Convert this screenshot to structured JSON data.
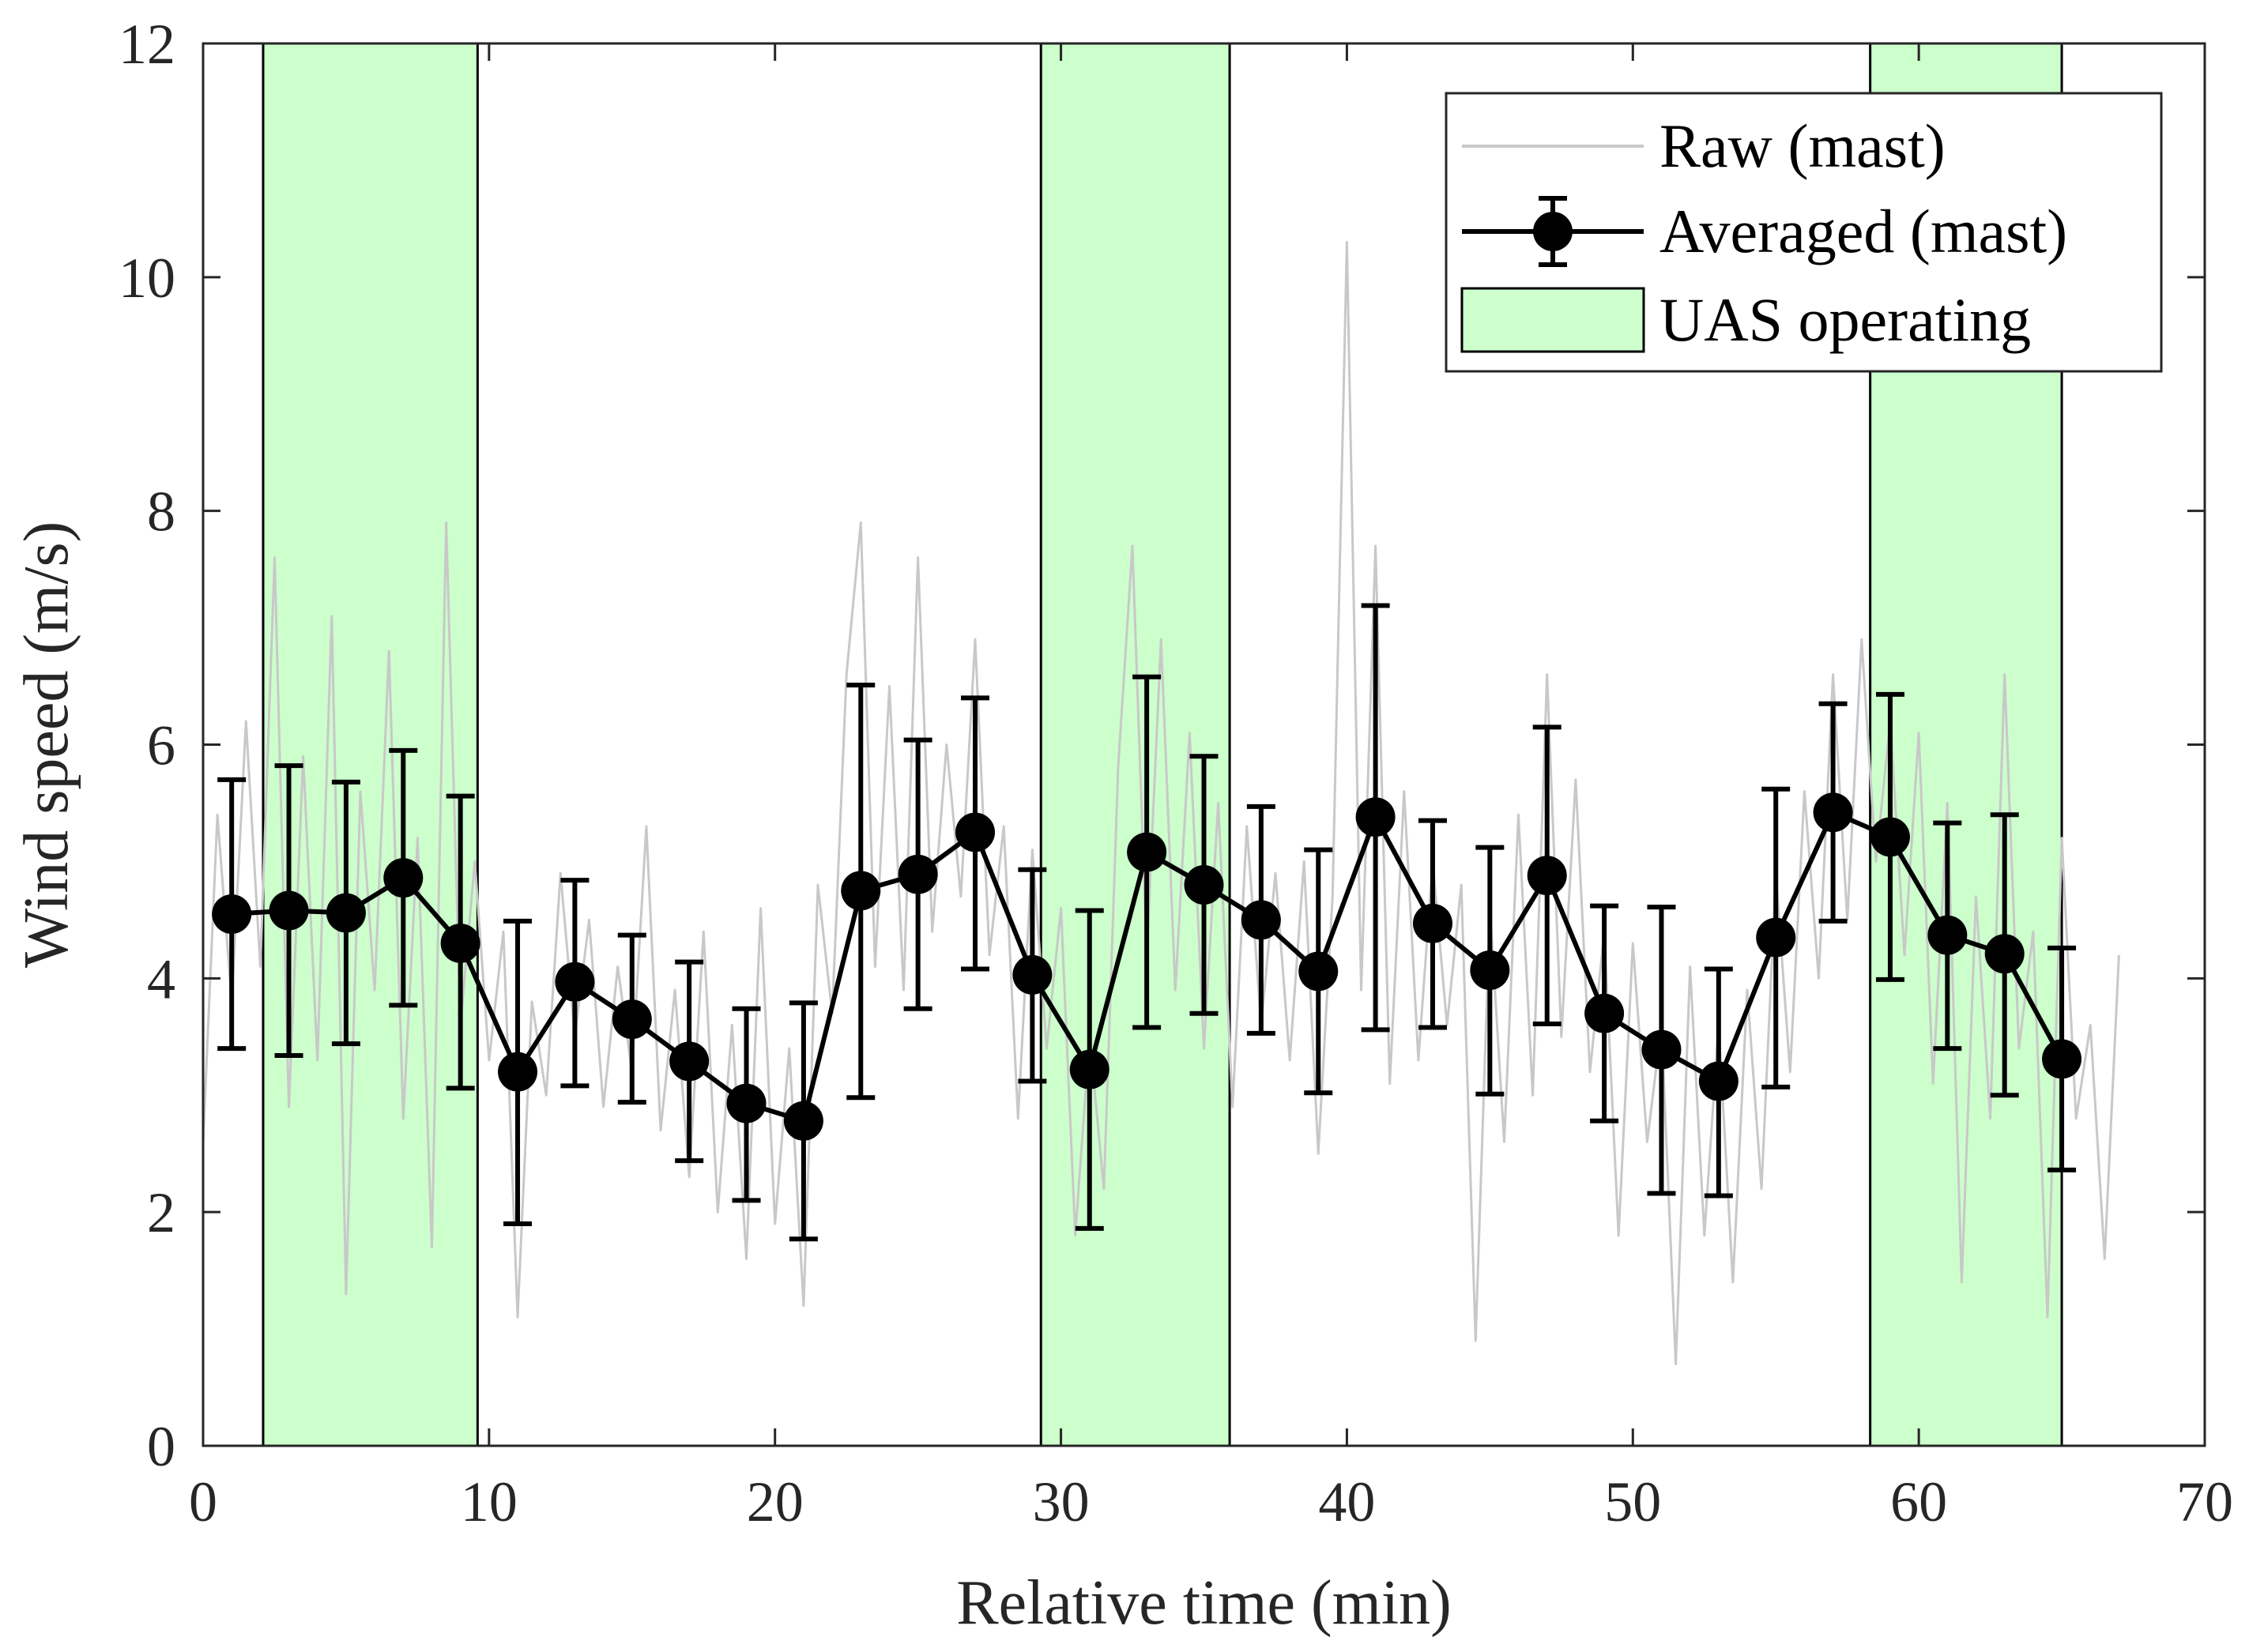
{
  "chart_data": {
    "type": "line",
    "title": "",
    "xlabel": "Relative time (min)",
    "ylabel": "Wind speed (m/s)",
    "xlim": [
      0,
      70
    ],
    "ylim": [
      0,
      12
    ],
    "xticks": [
      "0",
      "10",
      "20",
      "30",
      "40",
      "50",
      "60",
      "70"
    ],
    "yticks": [
      "0",
      "2",
      "4",
      "6",
      "8",
      "10",
      "12"
    ],
    "grid": false,
    "legend_position": "top-right",
    "legend": {
      "raw": "Raw (mast)",
      "averaged": "Averaged (mast)",
      "uas": "UAS operating"
    },
    "uas_intervals": [
      [
        2.1,
        9.6
      ],
      [
        29.3,
        35.9
      ],
      [
        58.3,
        65.0
      ]
    ],
    "averaged": {
      "name": "Averaged (mast)",
      "x": [
        1,
        3,
        5,
        7,
        9,
        11,
        13,
        15,
        17,
        19,
        21,
        23,
        25,
        27,
        29,
        31,
        33,
        35,
        37,
        39,
        41,
        43,
        45,
        47,
        49,
        51,
        53,
        55,
        57,
        59,
        61,
        63,
        65
      ],
      "y": [
        4.55,
        4.58,
        4.56,
        4.86,
        4.3,
        3.2,
        3.97,
        3.65,
        3.29,
        2.93,
        2.78,
        4.75,
        4.89,
        5.25,
        4.03,
        3.22,
        5.08,
        4.8,
        4.5,
        4.06,
        5.38,
        4.47,
        4.07,
        4.88,
        3.7,
        3.39,
        3.12,
        4.35,
        5.42,
        5.21,
        4.37,
        4.21,
        3.31
      ],
      "err_low": [
        3.4,
        3.34,
        3.44,
        3.77,
        3.06,
        1.9,
        3.08,
        2.94,
        2.44,
        2.1,
        1.77,
        2.98,
        3.74,
        4.08,
        3.12,
        1.86,
        3.58,
        3.7,
        3.53,
        3.02,
        3.56,
        3.58,
        3.01,
        3.61,
        2.78,
        2.16,
        2.14,
        3.07,
        4.49,
        3.99,
        3.4,
        3.0,
        2.36
      ],
      "err_high": [
        5.7,
        5.82,
        5.68,
        5.95,
        5.56,
        4.49,
        4.84,
        4.37,
        4.14,
        3.74,
        3.79,
        6.51,
        6.04,
        6.4,
        4.93,
        4.58,
        6.58,
        5.9,
        5.47,
        5.1,
        7.19,
        5.35,
        5.12,
        6.15,
        4.62,
        4.61,
        4.08,
        5.62,
        6.35,
        6.43,
        5.33,
        5.4,
        4.26
      ]
    },
    "raw": {
      "name": "Raw (mast)",
      "x": [
        0,
        0.5,
        1,
        1.5,
        2,
        2.5,
        3,
        3.5,
        4,
        4.5,
        5,
        5.5,
        6,
        6.5,
        7,
        7.5,
        8,
        8.5,
        9,
        9.5,
        10,
        10.5,
        11,
        11.5,
        12,
        12.5,
        13,
        13.5,
        14,
        14.5,
        15,
        15.5,
        16,
        16.5,
        17,
        17.5,
        18,
        18.5,
        19,
        19.5,
        20,
        20.5,
        21,
        21.5,
        22,
        22.5,
        23,
        23.5,
        24,
        24.5,
        25,
        25.5,
        26,
        26.5,
        27,
        27.5,
        28,
        28.5,
        29,
        29.5,
        30,
        30.5,
        31,
        31.5,
        32,
        32.5,
        33,
        33.5,
        34,
        34.5,
        35,
        35.5,
        36,
        36.5,
        37,
        37.5,
        38,
        38.5,
        39,
        39.5,
        40,
        40.5,
        41,
        41.5,
        42,
        42.5,
        43,
        43.5,
        44,
        44.5,
        45,
        45.5,
        46,
        46.5,
        47,
        47.5,
        48,
        48.5,
        49,
        49.5,
        50,
        50.5,
        51,
        51.5,
        52,
        52.5,
        53,
        53.5,
        54,
        54.5,
        55,
        55.5,
        56,
        56.5,
        57,
        57.5,
        58,
        58.5,
        59,
        59.5,
        60,
        60.5,
        61,
        61.5,
        62,
        62.5,
        63,
        63.5,
        64,
        64.5,
        65,
        65.5,
        66,
        66.5,
        67
      ],
      "y": [
        2.6,
        5.4,
        3.8,
        6.2,
        4.1,
        7.6,
        2.9,
        5.9,
        3.3,
        7.1,
        1.3,
        5.6,
        3.9,
        6.8,
        2.8,
        5.2,
        1.7,
        7.9,
        3.6,
        5.0,
        3.3,
        4.4,
        1.1,
        3.8,
        3.0,
        4.9,
        3.5,
        4.5,
        2.9,
        4.1,
        3.2,
        5.3,
        2.7,
        3.9,
        2.3,
        4.4,
        2.0,
        3.6,
        1.6,
        4.6,
        1.9,
        3.4,
        1.2,
        4.8,
        3.7,
        6.6,
        7.9,
        4.1,
        6.5,
        3.9,
        7.6,
        4.4,
        6.0,
        4.7,
        6.9,
        4.2,
        5.3,
        2.8,
        5.1,
        3.4,
        4.6,
        1.8,
        3.5,
        2.2,
        5.8,
        7.7,
        4.2,
        6.9,
        3.9,
        6.1,
        3.4,
        5.5,
        2.9,
        5.3,
        3.6,
        4.9,
        3.3,
        5.0,
        2.5,
        4.7,
        10.3,
        3.9,
        7.7,
        3.1,
        5.6,
        3.3,
        5.0,
        3.6,
        4.8,
        0.9,
        4.6,
        2.6,
        5.4,
        3.0,
        6.6,
        3.5,
        5.7,
        3.2,
        4.4,
        1.8,
        4.3,
        2.6,
        3.6,
        0.7,
        4.1,
        1.8,
        3.6,
        1.4,
        3.9,
        2.2,
        4.9,
        3.2,
        5.6,
        4.0,
        6.6,
        4.5,
        6.9,
        5.0,
        6.2,
        4.2,
        6.1,
        3.1,
        5.5,
        1.4,
        4.7,
        2.8,
        6.6,
        3.4,
        4.4,
        1.1,
        5.2,
        2.8,
        3.6,
        1.6,
        4.2
      ]
    }
  }
}
